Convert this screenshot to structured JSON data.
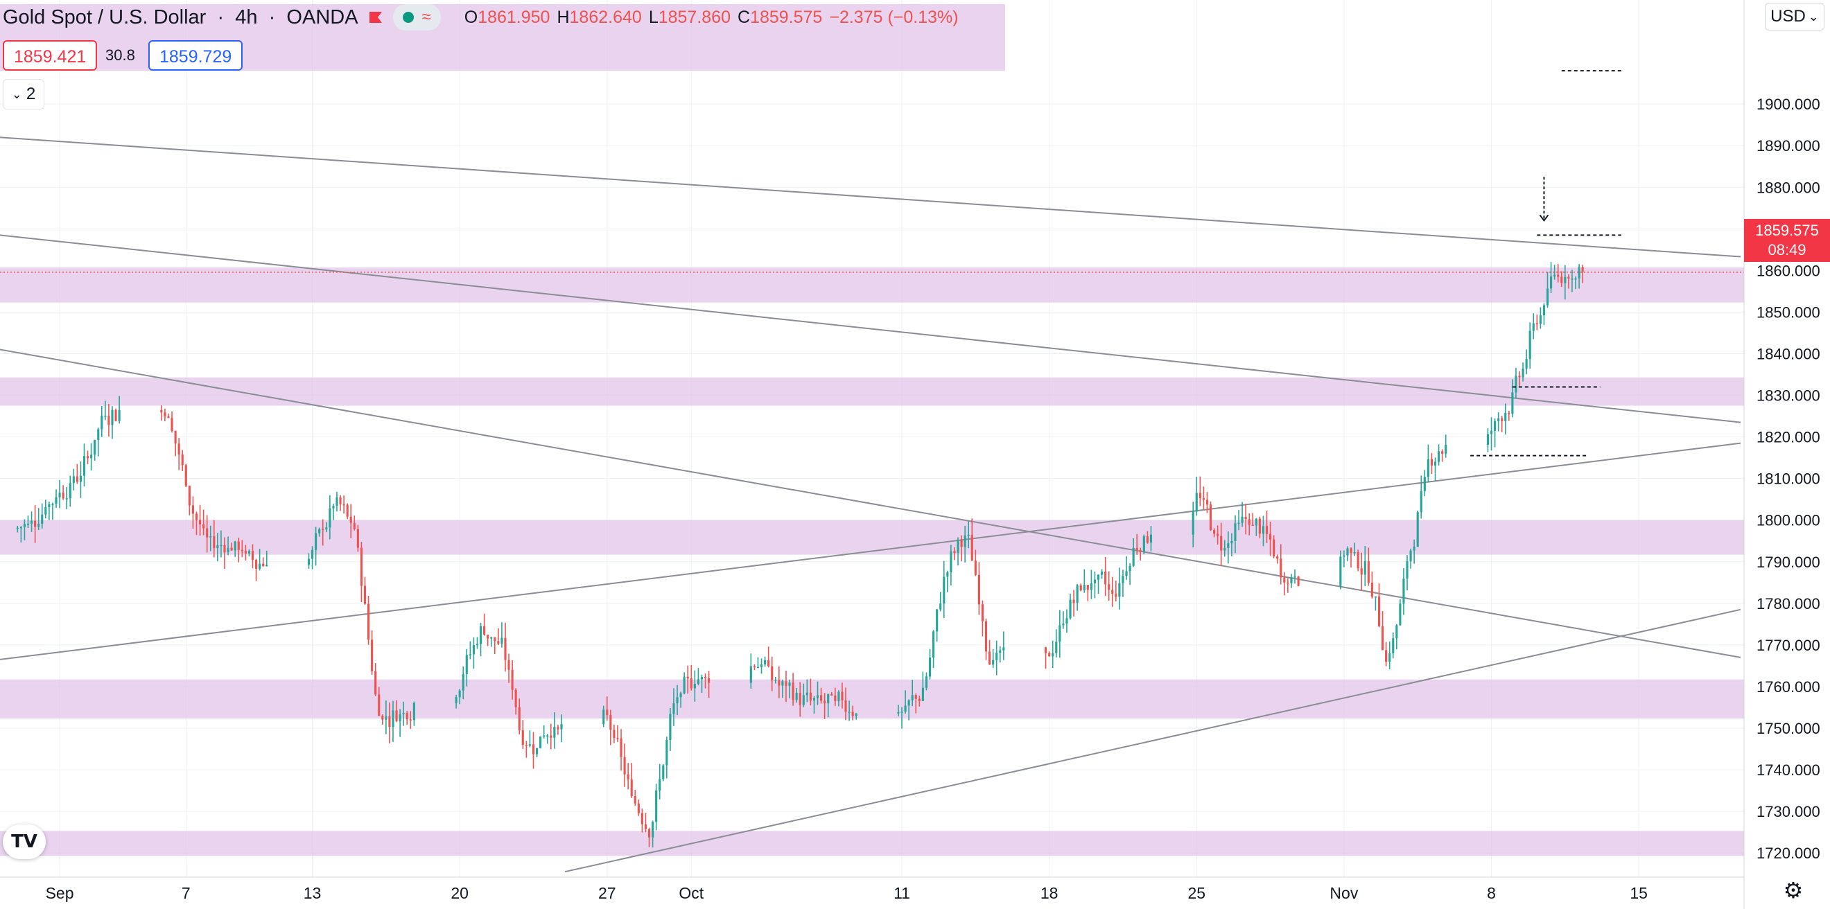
{
  "header": {
    "symbol": "Gold Spot / U.S. Dollar",
    "interval": "4h",
    "broker": "OANDA",
    "ohlc": {
      "open_label": "O",
      "open": "1861.950",
      "high_label": "H",
      "high": "1862.640",
      "low_label": "L",
      "low": "1857.860",
      "close_label": "C",
      "close": "1859.575",
      "change": "−2.375 (−0.13%)"
    },
    "indicator_icon": "wave-icon"
  },
  "quote": {
    "sell": "1859.421",
    "spread": "30.8",
    "buy": "1859.729"
  },
  "collapse": {
    "count": "2"
  },
  "currency": {
    "label": "USD"
  },
  "last_price_tag": {
    "price": "1859.575",
    "countdown": "08:49"
  },
  "colors": {
    "up": "#26a69a",
    "down": "#ef5350",
    "zone": "#e1c4e9",
    "trendline": "#8a8d94",
    "background": "#ffffff",
    "grid": "#eef0f3"
  },
  "chart_data": {
    "type": "candlestick",
    "price_axis": {
      "ylim": [
        1714.2,
        1925.0
      ],
      "ticks": [
        1720,
        1730,
        1740,
        1750,
        1760,
        1770,
        1780,
        1790,
        1800,
        1810,
        1820,
        1830,
        1840,
        1850,
        1860,
        1870,
        1880,
        1890,
        1900
      ],
      "tick_labels": [
        "1720.000",
        "1730.000",
        "1740.000",
        "1750.000",
        "1760.000",
        "1770.000",
        "1780.000",
        "1790.000",
        "1800.000",
        "1810.000",
        "1820.000",
        "1830.000",
        "1840.000",
        "1850.000",
        "1860.000",
        "1870.000",
        "1880.000",
        "1890.000",
        "1900.000"
      ]
    },
    "time_axis": {
      "xlim": [
        "2021-08-29T04:00",
        "2021-11-20T00:00"
      ],
      "ticks": [
        {
          "date": "2021-09-01",
          "label": "Sep"
        },
        {
          "date": "2021-09-07",
          "label": "7"
        },
        {
          "date": "2021-09-13",
          "label": "13"
        },
        {
          "date": "2021-09-20",
          "label": "20"
        },
        {
          "date": "2021-09-27",
          "label": "27"
        },
        {
          "date": "2021-10-01",
          "label": "Oct"
        },
        {
          "date": "2021-10-11",
          "label": "11"
        },
        {
          "date": "2021-10-18",
          "label": "18"
        },
        {
          "date": "2021-10-25",
          "label": "25"
        },
        {
          "date": "2021-11-01",
          "label": "Nov"
        },
        {
          "date": "2021-11-08",
          "label": "8"
        },
        {
          "date": "2021-11-15",
          "label": "15"
        }
      ]
    },
    "price_path": [
      [
        "2021-08-30",
        1798
      ],
      [
        "2021-09-02",
        1812
      ],
      [
        "2021-09-03",
        1826
      ],
      [
        "2021-09-06",
        1828
      ],
      [
        "2021-09-07",
        1805
      ],
      [
        "2021-09-08",
        1793
      ],
      [
        "2021-09-09",
        1795
      ],
      [
        "2021-09-10",
        1790
      ],
      [
        "2021-09-13",
        1793
      ],
      [
        "2021-09-14",
        1805
      ],
      [
        "2021-09-15",
        1795
      ],
      [
        "2021-09-16",
        1752
      ],
      [
        "2021-09-17",
        1754
      ],
      [
        "2021-09-20",
        1764
      ],
      [
        "2021-09-21",
        1775
      ],
      [
        "2021-09-22",
        1768
      ],
      [
        "2021-09-23",
        1744
      ],
      [
        "2021-09-24",
        1750
      ],
      [
        "2021-09-27",
        1752
      ],
      [
        "2021-09-28",
        1733
      ],
      [
        "2021-09-29",
        1727
      ],
      [
        "2021-09-30",
        1755
      ],
      [
        "2021-10-01",
        1762
      ],
      [
        "2021-10-04",
        1768
      ],
      [
        "2021-10-05",
        1760
      ],
      [
        "2021-10-06",
        1757
      ],
      [
        "2021-10-07",
        1756
      ],
      [
        "2021-10-08",
        1756
      ],
      [
        "2021-10-11",
        1753
      ],
      [
        "2021-10-12",
        1760
      ],
      [
        "2021-10-13",
        1790
      ],
      [
        "2021-10-14",
        1797
      ],
      [
        "2021-10-15",
        1767
      ],
      [
        "2021-10-18",
        1767
      ],
      [
        "2021-10-19",
        1782
      ],
      [
        "2021-10-20",
        1786
      ],
      [
        "2021-10-21",
        1782
      ],
      [
        "2021-10-22",
        1795
      ],
      [
        "2021-10-25",
        1807
      ],
      [
        "2021-10-26",
        1793
      ],
      [
        "2021-10-27",
        1800
      ],
      [
        "2021-10-28",
        1798
      ],
      [
        "2021-10-29",
        1785
      ],
      [
        "2021-11-01",
        1794
      ],
      [
        "2021-11-02",
        1788
      ],
      [
        "2021-11-03",
        1765
      ],
      [
        "2021-11-04",
        1792
      ],
      [
        "2021-11-05",
        1817
      ],
      [
        "2021-11-08",
        1823
      ],
      [
        "2021-11-09",
        1831
      ],
      [
        "2021-11-10",
        1848
      ],
      [
        "2021-11-11",
        1860
      ],
      [
        "2021-11-12",
        1860
      ]
    ],
    "zones": [
      {
        "from": 1908.0,
        "to": 1924.0
      },
      {
        "from": 1852.3,
        "to": 1860.7
      },
      {
        "from": 1827.5,
        "to": 1834.3
      },
      {
        "from": 1791.7,
        "to": 1800.0
      },
      {
        "from": 1752.3,
        "to": 1761.7
      },
      {
        "from": 1719.3,
        "to": 1725.3
      }
    ],
    "trendlines": [
      {
        "p1": [
          "2021-08-29T04:00",
          1892.0
        ],
        "p2": [
          "2021-11-19T20:00",
          1863.3
        ]
      },
      {
        "p1": [
          "2021-08-29T04:00",
          1868.5
        ],
        "p2": [
          "2021-11-19T20:00",
          1823.5
        ]
      },
      {
        "p1": [
          "2021-08-29T04:00",
          1841.0
        ],
        "p2": [
          "2021-11-19T20:00",
          1767.0
        ]
      },
      {
        "p1": [
          "2021-08-29T04:00",
          1766.5
        ],
        "p2": [
          "2021-11-19T20:00",
          1818.5
        ]
      },
      {
        "p1": [
          "2021-09-25",
          1715.5
        ],
        "p2": [
          "2021-11-19T20:00",
          1778.5
        ]
      }
    ],
    "dashed_levels": [
      {
        "from": "2021-11-11T08:00",
        "to": "2021-11-14T04:00",
        "price": 1908.0
      },
      {
        "from": "2021-11-10T04:00",
        "to": "2021-11-14T04:00",
        "price": 1868.5
      },
      {
        "from": "2021-11-09T00:00",
        "to": "2021-11-13T04:00",
        "price": 1832.0
      },
      {
        "from": "2021-11-07T00:00",
        "to": "2021-11-12T12:00",
        "price": 1815.5
      }
    ],
    "arrow": {
      "date": "2021-11-10T12:00",
      "from": 1882.5,
      "to": 1872.0
    },
    "last_price": 1859.575
  }
}
